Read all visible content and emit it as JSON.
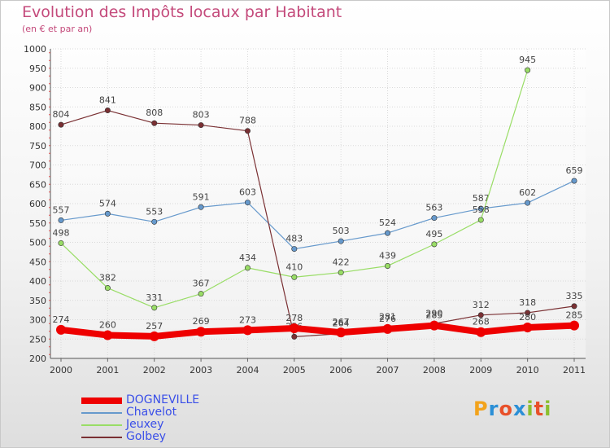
{
  "header": {
    "title": "Evolution des Impôts locaux par Habitant",
    "subtitle": "(en € et par an)"
  },
  "logo": {
    "letters": [
      "P",
      "r",
      "o",
      "x",
      "i",
      "t",
      "i"
    ],
    "colors": [
      "#f2a31c",
      "#2b8fd6",
      "#e8502a",
      "#2b8fd6",
      "#8bbf2e",
      "#e8502a",
      "#8bbf2e"
    ]
  },
  "chart_data": {
    "type": "line",
    "x": [
      "2000",
      "2001",
      "2002",
      "2003",
      "2004",
      "2005",
      "2006",
      "2007",
      "2008",
      "2009",
      "2010",
      "2011"
    ],
    "ylim": [
      200,
      1000
    ],
    "yticks": [
      200,
      250,
      300,
      350,
      400,
      450,
      500,
      550,
      600,
      650,
      700,
      750,
      800,
      850,
      900,
      950,
      1000
    ],
    "grid": true,
    "legend_position": "bottom-left",
    "series": [
      {
        "name": "DOGNEVILLE",
        "color": "#ee0000",
        "width": 8,
        "values": [
          274,
          260,
          257,
          269,
          273,
          278,
          267,
          276,
          285,
          268,
          280,
          285
        ],
        "labels": [
          "274",
          "260",
          "257",
          "269",
          "273",
          "278",
          "267",
          "276",
          "285",
          "268",
          "280",
          "285"
        ]
      },
      {
        "name": "Chavelot",
        "color": "#6699cc",
        "width": 1.2,
        "values": [
          557,
          574,
          553,
          591,
          603,
          483,
          503,
          524,
          563,
          587,
          602,
          659
        ],
        "labels": [
          "557",
          "574",
          "553",
          "591",
          "603",
          "483",
          "503",
          "524",
          "563",
          "587",
          "602",
          "659"
        ]
      },
      {
        "name": "Jeuxey",
        "color": "#99dd66",
        "width": 1.2,
        "values": [
          498,
          382,
          331,
          367,
          434,
          410,
          422,
          439,
          495,
          558,
          945,
          null
        ],
        "labels": [
          "498",
          "382",
          "331",
          "367",
          "434",
          "410",
          "422",
          "439",
          "495",
          "558",
          "945",
          ""
        ]
      },
      {
        "name": "Golbey",
        "color": "#7a3033",
        "width": 1.2,
        "values": [
          804,
          841,
          808,
          803,
          788,
          256,
          264,
          281,
          290,
          312,
          318,
          335
        ],
        "labels": [
          "804",
          "841",
          "808",
          "803",
          "788",
          "256",
          "264",
          "281",
          "290",
          "312",
          "318",
          "335"
        ]
      }
    ]
  }
}
